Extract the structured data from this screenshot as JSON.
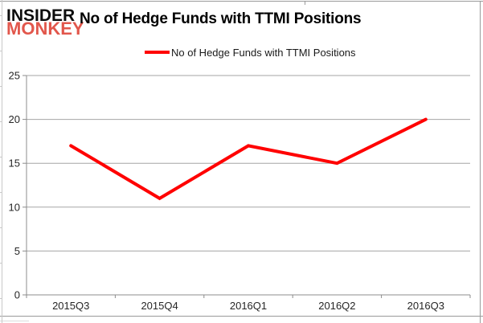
{
  "logo": {
    "line1": "INSIDER",
    "line2": "MONKEY"
  },
  "title": "No of Hedge Funds with TTMI Positions",
  "legend": {
    "label": "No of Hedge Funds with TTMI Positions"
  },
  "colors": {
    "line": "#ff0000",
    "logo_accent": "#e2574c",
    "gridline": "#a6a6a6",
    "axis": "#8c8c8c",
    "tick_text": "#262626",
    "frame_line": "#9a9a9a",
    "title_text": "#000000"
  },
  "chart_data": {
    "type": "line",
    "title": "No of Hedge Funds with TTMI Positions",
    "categories": [
      "2015Q3",
      "2015Q4",
      "2016Q1",
      "2016Q2",
      "2016Q3"
    ],
    "series": [
      {
        "name": "No of Hedge Funds with TTMI Positions",
        "values": [
          17,
          11,
          17,
          15,
          20
        ],
        "color": "#ff0000"
      }
    ],
    "xlabel": "",
    "ylabel": "",
    "ylim": [
      0,
      25
    ],
    "yticks": [
      0,
      5,
      10,
      15,
      20,
      25
    ],
    "grid": true,
    "legend_position": "top"
  }
}
